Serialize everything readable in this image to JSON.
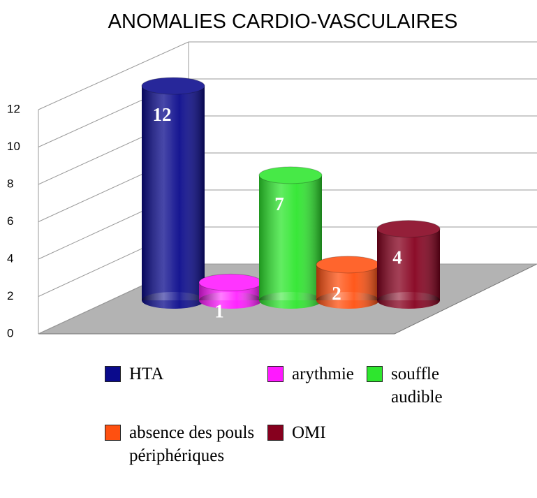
{
  "chart_data": {
    "type": "bar3d",
    "title": "ANOMALIES CARDIO-VASCULAIRES",
    "series": [
      {
        "name": "HTA",
        "color": "#0a0a8c",
        "values": [
          12
        ]
      },
      {
        "name": "arythmie",
        "color": "#ff19ff",
        "values": [
          1
        ]
      },
      {
        "name": "souffle audible",
        "color": "#2ee62e",
        "values": [
          7
        ]
      },
      {
        "name": "absence des pouls périphériques",
        "color": "#ff5010",
        "values": [
          2
        ]
      },
      {
        "name": "OMI",
        "color": "#86001e",
        "values": [
          4
        ]
      }
    ],
    "ylim": [
      0,
      12
    ],
    "yticks": [
      0,
      2,
      4,
      6,
      8,
      10,
      12
    ],
    "grid": true
  }
}
